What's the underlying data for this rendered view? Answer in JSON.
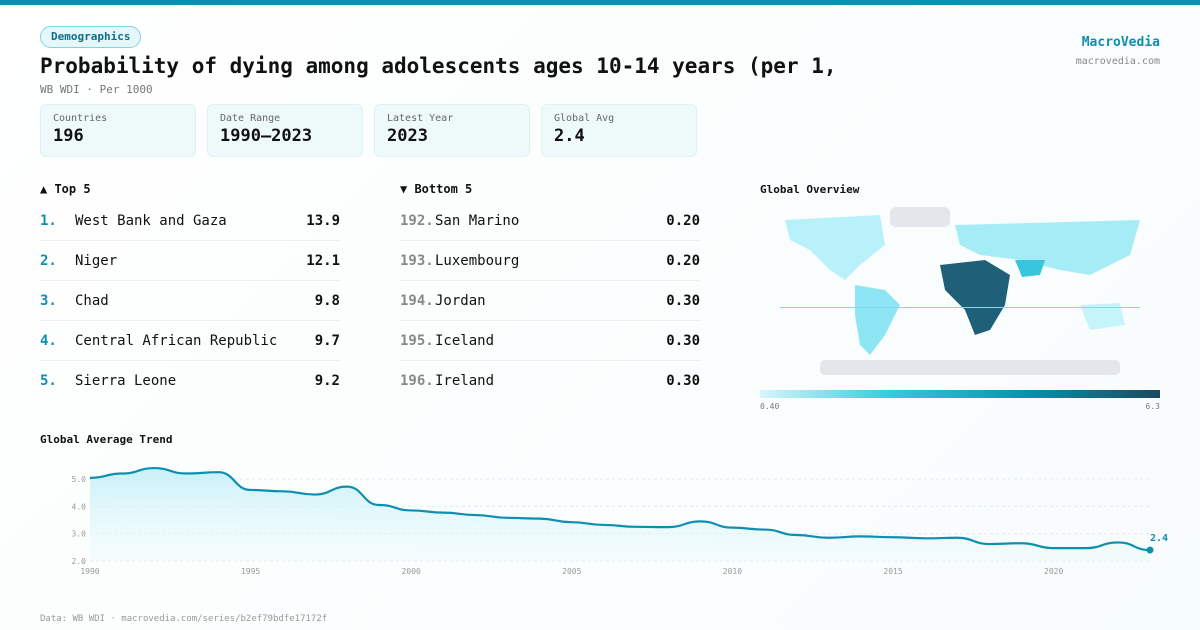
{
  "header": {
    "badge": "Demographics",
    "title": "Probability of dying among adolescents ages 10-14 years (per 1,",
    "subtitle": "WB WDI · Per 1000",
    "brand": "MacroVedia",
    "brand_url": "macrovedia.com"
  },
  "stats": [
    {
      "label": "Countries",
      "value": "196"
    },
    {
      "label": "Date Range",
      "value": "1990–2023"
    },
    {
      "label": "Latest Year",
      "value": "2023"
    },
    {
      "label": "Global Avg",
      "value": "2.4"
    }
  ],
  "top5": {
    "title": "▲ Top 5",
    "items": [
      {
        "rank": "1.",
        "name": "West Bank and Gaza",
        "value": "13.9"
      },
      {
        "rank": "2.",
        "name": "Niger",
        "value": "12.1"
      },
      {
        "rank": "3.",
        "name": "Chad",
        "value": "9.8"
      },
      {
        "rank": "4.",
        "name": "Central African Republic",
        "value": "9.7"
      },
      {
        "rank": "5.",
        "name": "Sierra Leone",
        "value": "9.2"
      }
    ]
  },
  "bottom5": {
    "title": "▼ Bottom 5",
    "items": [
      {
        "rank": "192.",
        "name": "San Marino",
        "value": "0.20"
      },
      {
        "rank": "193.",
        "name": "Luxembourg",
        "value": "0.20"
      },
      {
        "rank": "194.",
        "name": "Jordan",
        "value": "0.30"
      },
      {
        "rank": "195.",
        "name": "Iceland",
        "value": "0.30"
      },
      {
        "rank": "196.",
        "name": "Ireland",
        "value": "0.30"
      }
    ]
  },
  "map": {
    "title": "Global Overview",
    "legend_min": "0.40",
    "legend_max": "6.3"
  },
  "footer": "Data: WB WDI · macrovedia.com/series/b2ef79bdfe17172f",
  "chart_data": {
    "type": "area",
    "title": "Global Average Trend",
    "x": [
      1990,
      1991,
      1992,
      1993,
      1994,
      1995,
      1996,
      1997,
      1998,
      1999,
      2000,
      2001,
      2002,
      2003,
      2004,
      2005,
      2006,
      2007,
      2008,
      2009,
      2010,
      2011,
      2012,
      2013,
      2014,
      2015,
      2016,
      2017,
      2018,
      2019,
      2020,
      2021,
      2022,
      2023
    ],
    "values": [
      5.04,
      5.2,
      5.4,
      5.2,
      5.25,
      4.6,
      4.55,
      4.43,
      4.72,
      4.05,
      3.85,
      3.77,
      3.68,
      3.58,
      3.55,
      3.42,
      3.32,
      3.25,
      3.24,
      3.45,
      3.22,
      3.15,
      2.95,
      2.85,
      2.9,
      2.87,
      2.83,
      2.85,
      2.62,
      2.65,
      2.47,
      2.47,
      2.68,
      2.4
    ],
    "ylim": [
      2.0,
      5.0
    ],
    "yticks": [
      "2.0",
      "3.0",
      "4.0",
      "5.0"
    ],
    "xticks": [
      "1990",
      "1995",
      "2000",
      "2005",
      "2010",
      "2015",
      "2020"
    ],
    "last_label": "2.4",
    "color": "#0e8fb0"
  }
}
